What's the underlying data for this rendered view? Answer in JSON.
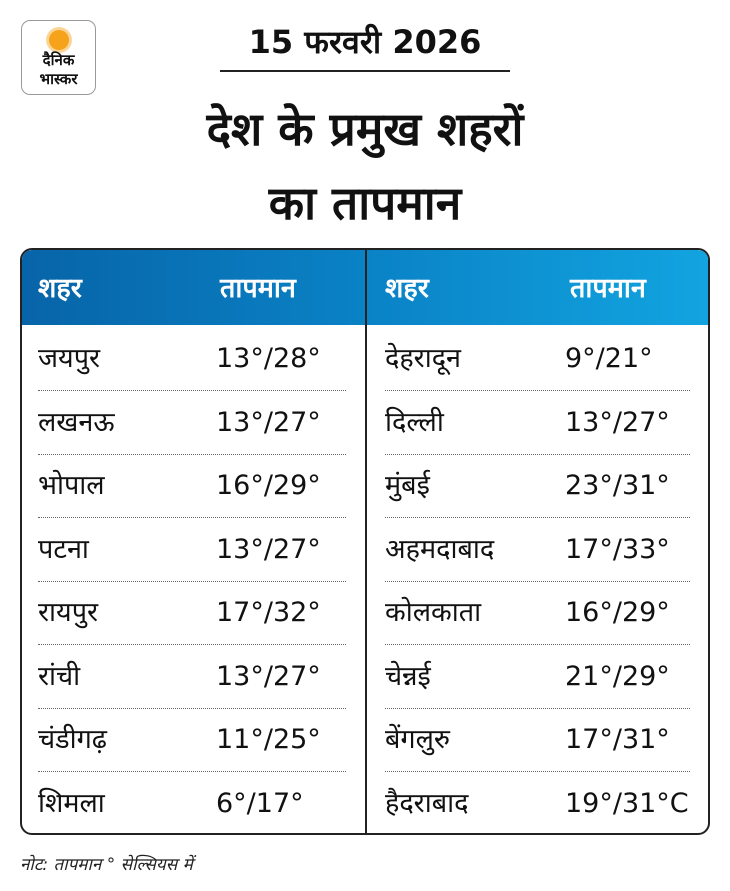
{
  "logo": {
    "line1": "दैनिक",
    "line2": "भास्कर",
    "sun_color": "#f7a21b"
  },
  "date": "15 फरवरी 2026",
  "title_line1": "देश के प्रमुख शहरों",
  "title_line2": "का तापमान",
  "colors": {
    "header_dark": "#0864a8",
    "header_light": "#12a4e0"
  },
  "table": {
    "headers": {
      "city": "शहर",
      "temp": "तापमान"
    },
    "left": [
      {
        "city": "जयपुर",
        "temp": "13°/28°"
      },
      {
        "city": "लखनऊ",
        "temp": "13°/27°"
      },
      {
        "city": "भोपाल",
        "temp": "16°/29°"
      },
      {
        "city": "पटना",
        "temp": "13°/27°"
      },
      {
        "city": "रायपुर",
        "temp": "17°/32°"
      },
      {
        "city": "रांची",
        "temp": "13°/27°"
      },
      {
        "city": "चंडीगढ़",
        "temp": "11°/25°"
      },
      {
        "city": "शिमला",
        "temp": "6°/17°"
      }
    ],
    "right": [
      {
        "city": "देहरादून",
        "temp": "9°/21°"
      },
      {
        "city": "दिल्ली",
        "temp": "13°/27°"
      },
      {
        "city": "मुंबई",
        "temp": "23°/31°"
      },
      {
        "city": "अहमदाबाद",
        "temp": "17°/33°"
      },
      {
        "city": "कोलकाता",
        "temp": "16°/29°"
      },
      {
        "city": "चेन्नई",
        "temp": "21°/29°"
      },
      {
        "city": "बेंगलुरु",
        "temp": "17°/31°"
      },
      {
        "city": "हैदराबाद",
        "temp": "19°/31°C"
      }
    ]
  },
  "note": "नोट: तापमान  ° सेल्सियस में"
}
